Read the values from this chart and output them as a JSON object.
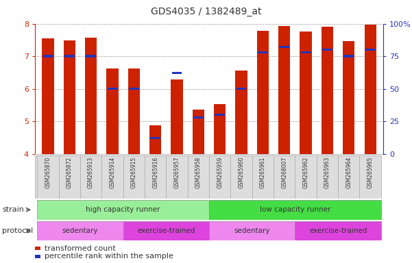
{
  "title": "GDS4035 / 1382489_at",
  "samples": [
    "GSM265870",
    "GSM265872",
    "GSM265913",
    "GSM265914",
    "GSM265915",
    "GSM265916",
    "GSM265957",
    "GSM265958",
    "GSM265959",
    "GSM265960",
    "GSM265961",
    "GSM268007",
    "GSM265962",
    "GSM265963",
    "GSM265964",
    "GSM265965"
  ],
  "red_values": [
    7.55,
    7.48,
    7.58,
    6.62,
    6.63,
    4.87,
    6.28,
    5.35,
    5.53,
    6.57,
    7.77,
    7.92,
    7.75,
    7.9,
    7.47,
    7.98
  ],
  "blue_values_pct": [
    75,
    75,
    75,
    50,
    50,
    12,
    62,
    28,
    30,
    50,
    78,
    82,
    78,
    80,
    75,
    80
  ],
  "ylim_left": [
    4,
    8
  ],
  "ylim_right": [
    0,
    100
  ],
  "yticks_left": [
    4,
    5,
    6,
    7,
    8
  ],
  "yticks_right": [
    0,
    25,
    50,
    75,
    100
  ],
  "bar_color_red": "#cc2200",
  "bar_color_blue": "#2233bb",
  "bar_width": 0.55,
  "strain_groups": [
    {
      "label": "high capacity runner",
      "start": 0,
      "end": 8,
      "color": "#99ee99"
    },
    {
      "label": "low capacity runner",
      "start": 8,
      "end": 16,
      "color": "#44dd44"
    }
  ],
  "protocol_groups": [
    {
      "label": "sedentary",
      "start": 0,
      "end": 4,
      "color": "#ee88ee"
    },
    {
      "label": "exercise-trained",
      "start": 4,
      "end": 8,
      "color": "#dd44dd"
    },
    {
      "label": "sedentary",
      "start": 8,
      "end": 12,
      "color": "#ee88ee"
    },
    {
      "label": "exercise-trained",
      "start": 12,
      "end": 16,
      "color": "#dd44dd"
    }
  ],
  "legend_red_label": "transformed count",
  "legend_blue_label": "percentile rank within the sample",
  "strain_label": "strain",
  "protocol_label": "protocol",
  "background_color": "#ffffff",
  "plot_bg_color": "#ffffff",
  "grid_color": "#777777",
  "axis_color_left": "#cc2200",
  "axis_color_right": "#2233bb",
  "xlabel_bg": "#dddddd",
  "xlabel_border": "#aaaaaa"
}
